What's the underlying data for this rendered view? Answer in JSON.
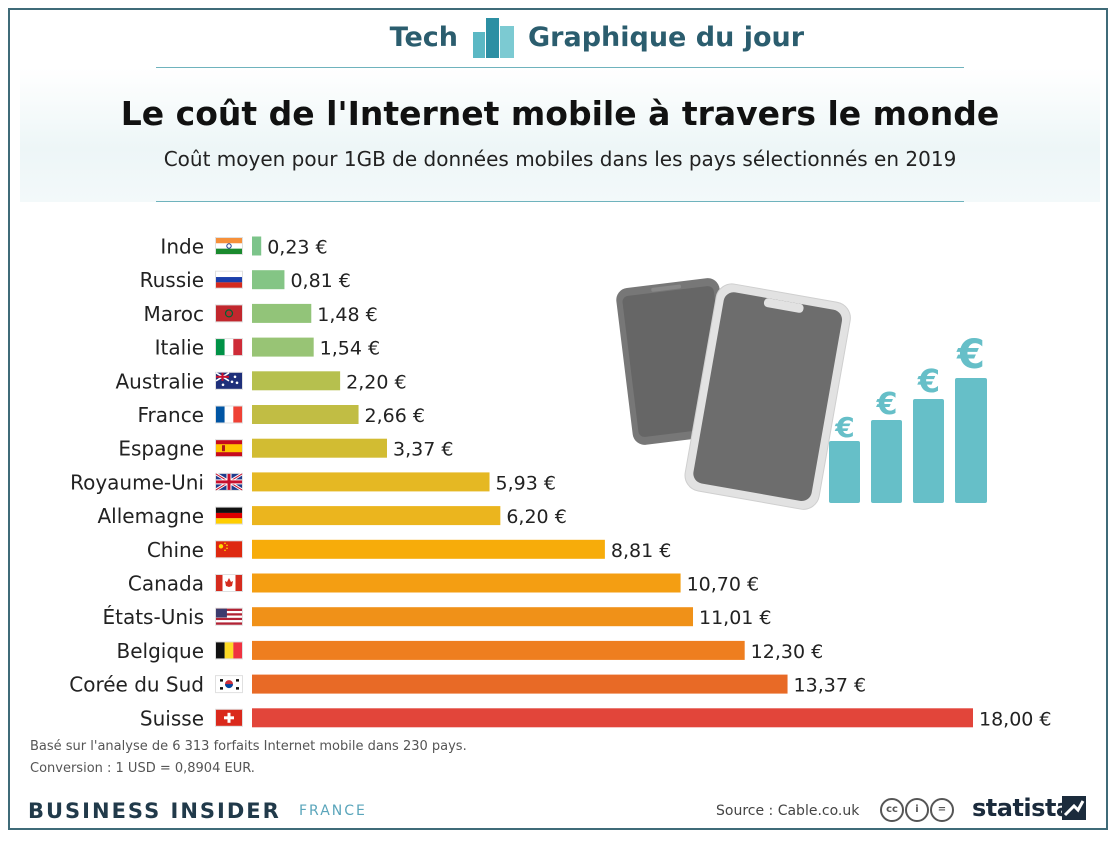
{
  "header": {
    "tag_left": "Tech",
    "tag_right": "Graphique du jour",
    "logo_icon": "bar-chart-logo-icon"
  },
  "title": "Le coût de l'Internet mobile à travers le monde",
  "subtitle": "Coût moyen pour 1GB de données mobiles dans les pays sélectionnés en 2019",
  "chart_data": {
    "type": "bar",
    "orientation": "horizontal",
    "title": "Le coût de l'Internet mobile à travers le monde",
    "subtitle": "Coût moyen pour 1GB de données mobiles dans les pays sélectionnés en 2019",
    "xlim": [
      0,
      18
    ],
    "grid": false,
    "categories": [
      "Inde",
      "Russie",
      "Maroc",
      "Italie",
      "Australie",
      "France",
      "Espagne",
      "Royaume-Uni",
      "Allemagne",
      "Chine",
      "Canada",
      "États-Unis",
      "Belgique",
      "Corée du Sud",
      "Suisse"
    ],
    "values": [
      0.23,
      0.81,
      1.48,
      1.54,
      2.2,
      2.66,
      3.37,
      5.93,
      6.2,
      8.81,
      10.7,
      11.01,
      12.3,
      13.37,
      18.0
    ],
    "value_labels": [
      "0,23 €",
      "0,81 €",
      "1,48 €",
      "1,54 €",
      "2,20 €",
      "2,66 €",
      "3,37 €",
      "5,93 €",
      "6,20 €",
      "8,81 €",
      "10,70 €",
      "11,01 €",
      "12,30 €",
      "13,37 €",
      "18,00 €"
    ],
    "bar_colors": [
      "#7cc48a",
      "#84c585",
      "#92c479",
      "#98c475",
      "#b6c04e",
      "#c1bd44",
      "#d2bc32",
      "#e5b823",
      "#ebb51e",
      "#f7ac0a",
      "#f49e12",
      "#f09118",
      "#ee7e1f",
      "#e86a26",
      "#e2453a"
    ],
    "flags": [
      "india",
      "russia",
      "morocco",
      "italy",
      "australia",
      "france",
      "spain",
      "uk",
      "germany",
      "china",
      "canada",
      "usa",
      "belgium",
      "south-korea",
      "switzerland"
    ]
  },
  "notes": [
    "Basé sur l'analyse de 6 313 forfaits Internet mobile dans 230 pays.",
    "Conversion : 1 USD = 0,8904 EUR."
  ],
  "footer": {
    "brand": "BUSINESS INSIDER",
    "brand_sub": "FRANCE",
    "source": "Source : Cable.co.uk",
    "cc_icons": [
      "cc-icon",
      "by-icon",
      "nd-icon"
    ],
    "statista": "statista"
  },
  "illustration": {
    "color_phone": "#6d6d6d",
    "color_euro": "#66bfc8",
    "euro_symbol": "€"
  }
}
